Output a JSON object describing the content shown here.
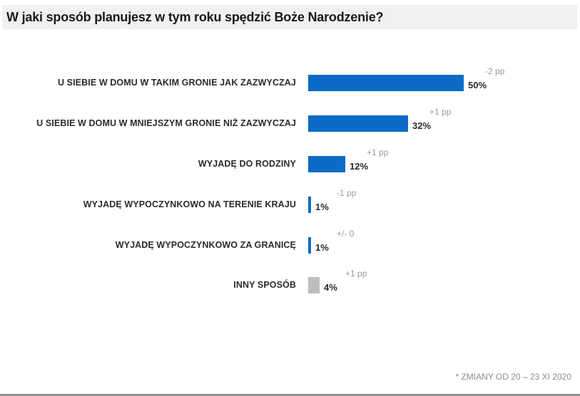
{
  "title": "W jaki sposób planujesz w tym roku spędzić Boże Narodzenie?",
  "footnote": "* ZMIANY OD 20 – 23 XI 2020",
  "colors": {
    "primary_bar": "#0a6cc4",
    "other_bar": "#bdbdbd",
    "change_text": "#9a9a9a"
  },
  "rows": [
    {
      "label": "U SIEBIE W DOMU W TAKIM GRONIE JAK ZAZWYCZAJ",
      "value": 50,
      "value_label": "50%",
      "change": "-2 pp",
      "color": "#0a6cc4"
    },
    {
      "label": "U SIEBIE W DOMU W MNIEJSZYM GRONIE NIŻ ZAZWYCZAJ",
      "value": 32,
      "value_label": "32%",
      "change": "+1 pp",
      "color": "#0a6cc4"
    },
    {
      "label": "WYJADĘ DO RODZINY",
      "value": 12,
      "value_label": "12%",
      "change": "+1 pp",
      "color": "#0a6cc4"
    },
    {
      "label": "WYJADĘ WYPOCZYNKOWO NA TERENIE KRAJU",
      "value": 1,
      "value_label": "1%",
      "change": "-1 pp",
      "color": "#0a6cc4"
    },
    {
      "label": "WYJADĘ WYPOCZYNKOWO ZA GRANICĘ",
      "value": 1,
      "value_label": "1%",
      "change": "+/- 0",
      "color": "#0a6cc4"
    },
    {
      "label": "INNY SPOSÓB",
      "value": 4,
      "value_label": "4%",
      "change": "+1 pp",
      "color": "#bdbdbd"
    }
  ],
  "chart_data": {
    "type": "bar",
    "orientation": "horizontal",
    "title": "W jaki sposób planujesz w tym roku spędzić Boże Narodzenie?",
    "categories": [
      "U SIEBIE W DOMU W TAKIM GRONIE JAK ZAZWYCZAJ",
      "U SIEBIE W DOMU W MNIEJSZYM GRONIE NIŻ ZAZWYCZAJ",
      "WYJADĘ DO RODZINY",
      "WYJADĘ WYPOCZYNKOWO NA TERENIE KRAJU",
      "WYJADĘ WYPOCZYNKOWO ZA GRANICĘ",
      "INNY SPOSÓB"
    ],
    "values": [
      50,
      32,
      12,
      1,
      1,
      4
    ],
    "unit": "%",
    "changes_pp": [
      "-2 pp",
      "+1 pp",
      "+1 pp",
      "-1 pp",
      "+/- 0",
      "+1 pp"
    ],
    "annotation": "* ZMIANY OD 20 – 23 XI 2020",
    "xlabel": "",
    "ylabel": "",
    "grid": false,
    "legend": null
  }
}
